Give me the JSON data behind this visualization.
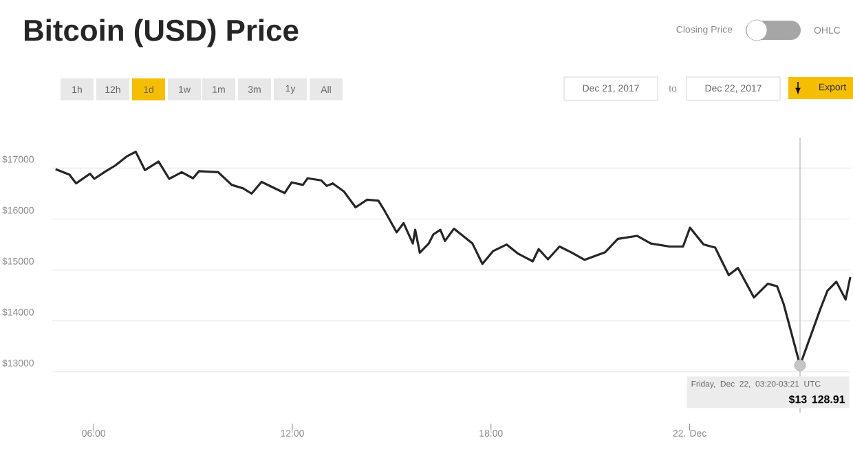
{
  "chart_data": {
    "type": "line",
    "title": "Bitcoin (USD) Price",
    "x": [
      4.85,
      5.27,
      5.47,
      5.89,
      6.02,
      6.37,
      6.65,
      7.0,
      7.27,
      7.55,
      7.96,
      8.28,
      8.66,
      9.0,
      9.18,
      9.76,
      10.17,
      10.52,
      10.77,
      11.07,
      11.77,
      11.98,
      12.32,
      12.46,
      12.87,
      13.04,
      13.22,
      13.56,
      13.91,
      14.26,
      14.6,
      14.78,
      15.15,
      15.36,
      15.64,
      15.71,
      15.85,
      16.12,
      16.26,
      16.47,
      16.61,
      16.88,
      17.44,
      17.74,
      18.06,
      18.47,
      18.82,
      19.26,
      19.44,
      19.72,
      20.07,
      20.41,
      20.83,
      21.45,
      21.83,
      22.41,
      22.83,
      23.39,
      23.8,
      24.01,
      24.42,
      24.77,
      25.18,
      25.46,
      25.94,
      26.36,
      26.64,
      26.84,
      27.333,
      27.95,
      28.16,
      28.43,
      28.71,
      28.85
    ],
    "values": [
      16980,
      16870,
      16700,
      16890,
      16790,
      16940,
      17050,
      17230,
      17320,
      16960,
      17130,
      16790,
      16920,
      16800,
      16940,
      16920,
      16670,
      16600,
      16500,
      16730,
      16510,
      16720,
      16670,
      16800,
      16760,
      16650,
      16700,
      16540,
      16230,
      16380,
      16360,
      16170,
      15740,
      15920,
      15520,
      15790,
      15340,
      15520,
      15700,
      15790,
      15570,
      15810,
      15520,
      15120,
      15370,
      15500,
      15320,
      15170,
      15410,
      15210,
      15460,
      15350,
      15200,
      15350,
      15610,
      15670,
      15520,
      15460,
      15460,
      15830,
      15500,
      15440,
      14900,
      15040,
      14460,
      14730,
      14680,
      14330,
      13128.91,
      14240,
      14590,
      14770,
      14420,
      14860
    ],
    "color": "#262626",
    "xlim": [
      4.75,
      28.85
    ],
    "ylim": [
      12200,
      17600
    ],
    "xticks": [
      {
        "value": 6,
        "label": "06:00"
      },
      {
        "value": 12,
        "label": "12:00"
      },
      {
        "value": 18,
        "label": "18:00"
      },
      {
        "value": 24,
        "label": "22. Dec"
      }
    ],
    "yticks": [
      {
        "value": 13000,
        "label": "$13000"
      },
      {
        "value": 14000,
        "label": "$14000"
      },
      {
        "value": 15000,
        "label": "$15000"
      },
      {
        "value": 16000,
        "label": "$16000"
      },
      {
        "value": 17000,
        "label": "$17000"
      }
    ],
    "grid": "y",
    "ref_lines": [
      {
        "axis": "x",
        "value": 27.333,
        "color": "#b2b2b2"
      }
    ],
    "annotations": [
      "Closing Price",
      "OHLC",
      "1h",
      "12h",
      "1d",
      "1w",
      "1m",
      "3m",
      "1y",
      "All",
      "Dec 21, 2017",
      "to",
      "Dec 22, 2017",
      "Export",
      {
        "text": "Friday, Dec 22, 03:20-03:21 UTC",
        "x": 27.333,
        "y": 13128.91
      },
      "$13 128.91"
    ]
  }
}
